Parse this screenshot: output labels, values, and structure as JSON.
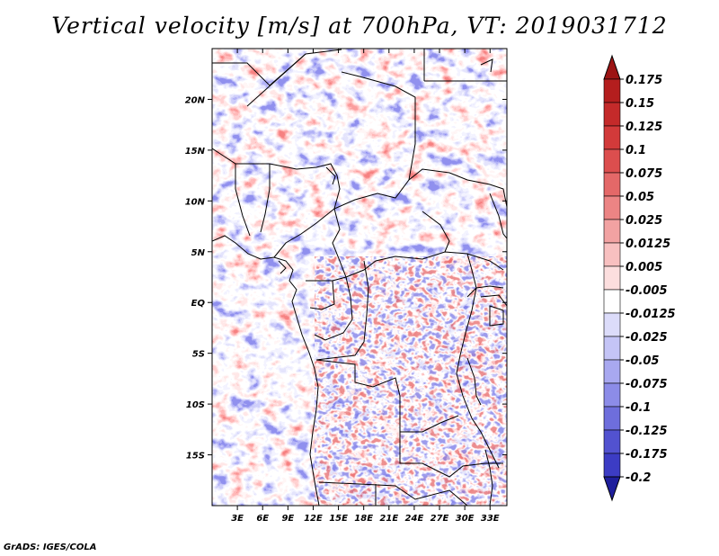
{
  "title": "Vertical velocity [m/s] at 700hPa, VT: 2019031712",
  "credit": "GrADS: IGES/COLA",
  "map": {
    "lon_range": [
      0,
      35
    ],
    "lat_range": [
      -20,
      25
    ],
    "lon_ticks": [
      {
        "value": 3,
        "label": "3E"
      },
      {
        "value": 6,
        "label": "6E"
      },
      {
        "value": 9,
        "label": "9E"
      },
      {
        "value": 12,
        "label": "12E"
      },
      {
        "value": 15,
        "label": "15E"
      },
      {
        "value": 18,
        "label": "18E"
      },
      {
        "value": 21,
        "label": "21E"
      },
      {
        "value": 24,
        "label": "24E"
      },
      {
        "value": 27,
        "label": "27E"
      },
      {
        "value": 30,
        "label": "30E"
      },
      {
        "value": 33,
        "label": "33E"
      }
    ],
    "lat_ticks": [
      {
        "value": 20,
        "label": "20N"
      },
      {
        "value": 15,
        "label": "15N"
      },
      {
        "value": 10,
        "label": "10N"
      },
      {
        "value": 5,
        "label": "5N"
      },
      {
        "value": 0,
        "label": "EQ"
      },
      {
        "value": -5,
        "label": "5S"
      },
      {
        "value": -10,
        "label": "10S"
      },
      {
        "value": -15,
        "label": "15S"
      }
    ]
  },
  "colorbar": {
    "levels": [
      {
        "label": "0.175",
        "color": "#b41e1e"
      },
      {
        "label": "0.15",
        "color": "#c42a2a"
      },
      {
        "label": "0.125",
        "color": "#d23a3a"
      },
      {
        "label": "0.1",
        "color": "#dc4e4e"
      },
      {
        "label": "0.075",
        "color": "#e46868"
      },
      {
        "label": "0.05",
        "color": "#ec8484"
      },
      {
        "label": "0.025",
        "color": "#f2a2a2"
      },
      {
        "label": "0.0125",
        "color": "#f8c0c0"
      },
      {
        "label": "0.005",
        "color": "#fcdede"
      },
      {
        "label": "-0.005",
        "color": "#ffffff"
      },
      {
        "label": "-0.0125",
        "color": "#dcdcfa"
      },
      {
        "label": "-0.025",
        "color": "#c4c4f6"
      },
      {
        "label": "-0.05",
        "color": "#a8a8f0"
      },
      {
        "label": "-0.075",
        "color": "#8c8ce8"
      },
      {
        "label": "-0.1",
        "color": "#6e6edc"
      },
      {
        "label": "-0.125",
        "color": "#5252d0"
      },
      {
        "label": "-0.175",
        "color": "#3c3cc4"
      },
      {
        "label": "-0.2",
        "color": "#2a2ab4"
      }
    ],
    "top_color": "#9c1414",
    "bottom_color": "#1e1e9c"
  }
}
